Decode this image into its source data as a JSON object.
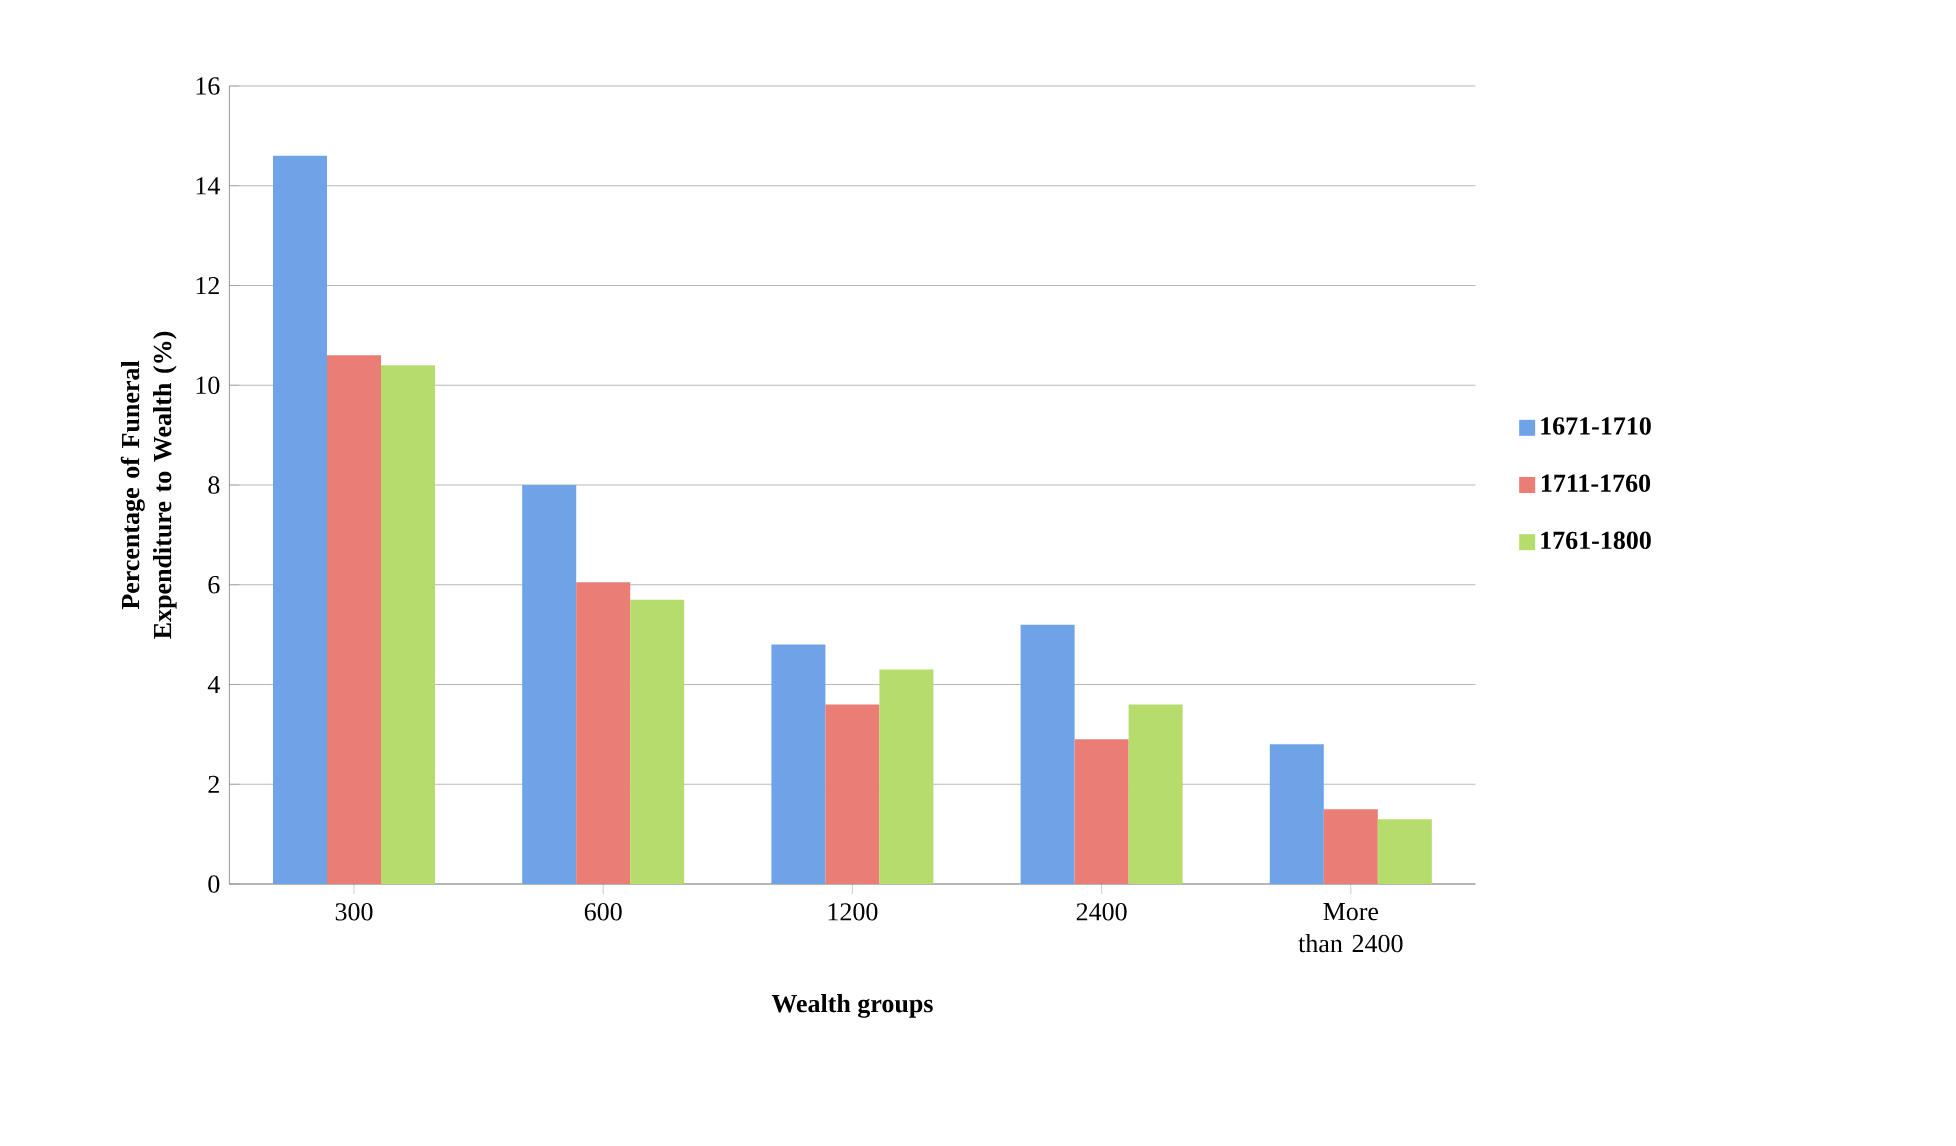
{
  "chart_data": {
    "type": "bar",
    "categories": [
      "300",
      "600",
      "1200",
      "2400",
      "More than 2400"
    ],
    "series": [
      {
        "name": "1671-1710",
        "color": "#6fa3e8",
        "values": [
          14.6,
          8.0,
          4.8,
          5.2,
          2.8
        ]
      },
      {
        "name": "1711-1760",
        "color": "#ea7d74",
        "values": [
          10.6,
          6.05,
          3.6,
          2.9,
          1.5
        ]
      },
      {
        "name": "1761-1800",
        "color": "#b6dc6c",
        "values": [
          10.4,
          5.7,
          4.3,
          3.6,
          1.3
        ]
      }
    ],
    "xlabel": "Wealth groups",
    "ylabel": "Percentage of Funeral Expenditure to Wealth (%)",
    "ylim": [
      0,
      16
    ],
    "yticks": [
      0,
      2,
      4,
      6,
      8,
      10,
      12,
      14,
      16
    ],
    "grid": "y",
    "legend": "right"
  }
}
